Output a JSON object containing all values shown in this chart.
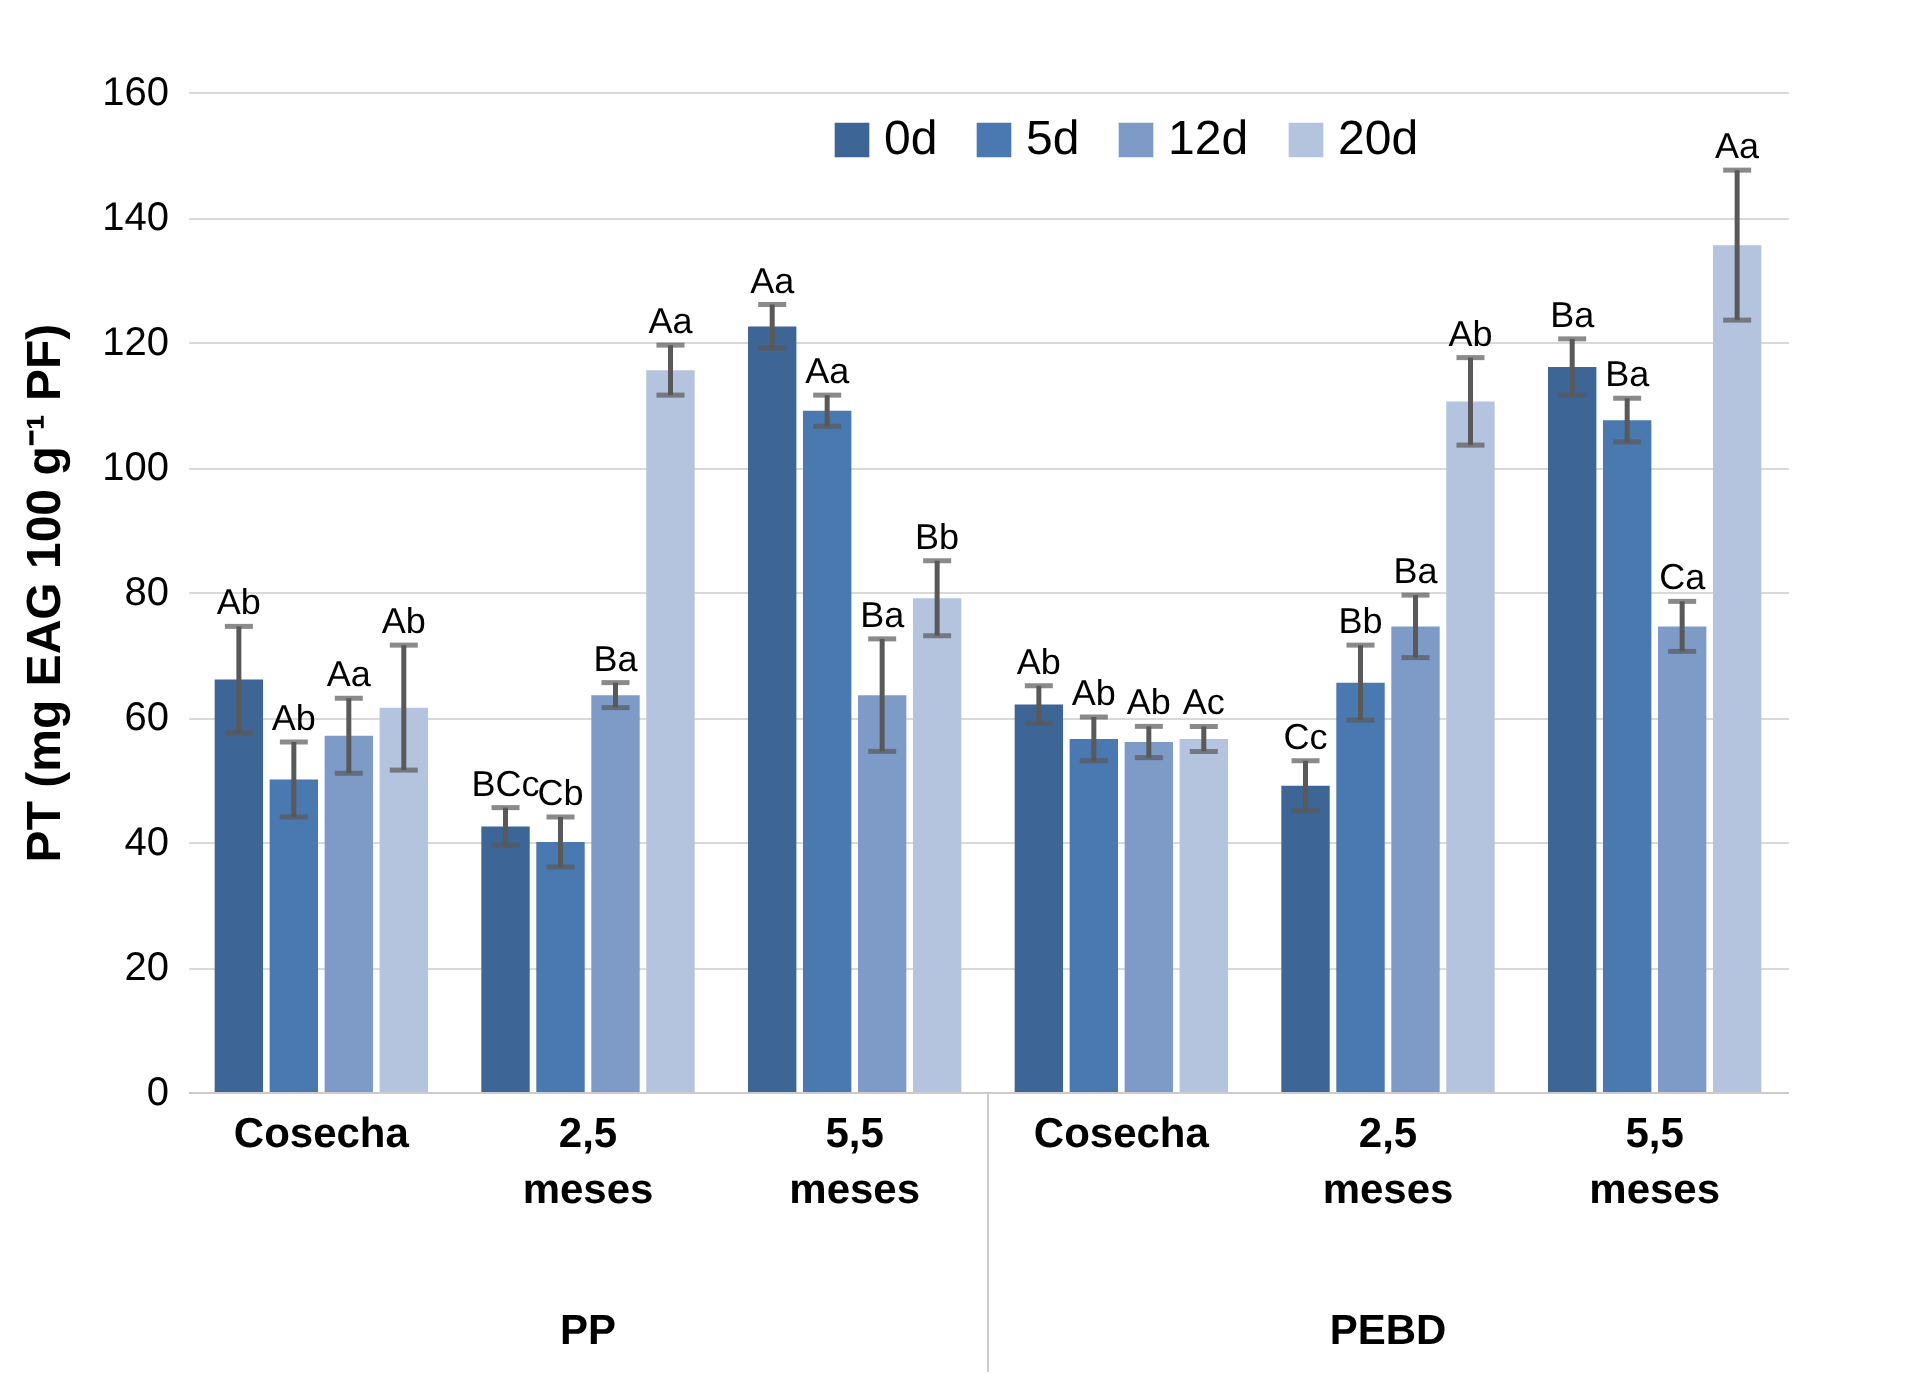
{
  "chart_data": {
    "type": "bar",
    "ylabel": "PT (mg EAG 100 g⁻¹ PF)",
    "categories": [
      "Cosecha",
      "2,5 meses",
      "5,5 meses",
      "Cosecha",
      "2,5 meses",
      "5,5 meses"
    ],
    "series": [
      {
        "name": "0d",
        "color": "#3d6596",
        "values": [
          66,
          42.5,
          122.5,
          62,
          49,
          116
        ],
        "errors": [
          8.5,
          3,
          3.5,
          3,
          4,
          4.5
        ],
        "value_labels": [
          "Ab",
          "BCc",
          "Aa",
          "Ab",
          "Cc",
          "Ba"
        ]
      },
      {
        "name": "5d",
        "color": "#4a78b0",
        "values": [
          50,
          40,
          109,
          56.5,
          65.5,
          107.5
        ],
        "errors": [
          6,
          4,
          2.5,
          3.5,
          6,
          3.5
        ],
        "value_labels": [
          "Ab",
          "Cb",
          "Aa",
          "Ab",
          "Bb",
          "Ba"
        ]
      },
      {
        "name": "12d",
        "color": "#7e9bc8",
        "values": [
          57,
          63.5,
          63.5,
          56,
          74.5,
          74.5
        ],
        "errors": [
          6,
          2,
          9,
          2.5,
          5,
          4
        ],
        "value_labels": [
          "Aa",
          "Ba",
          "Ba",
          "Ab",
          "Ba",
          "Ca"
        ]
      },
      {
        "name": "20d",
        "color": "#b4c3de",
        "values": [
          61.5,
          115.5,
          79,
          56.5,
          110.5,
          135.5
        ],
        "errors": [
          10,
          4,
          6,
          2,
          7,
          12
        ],
        "value_labels": [
          "Ab",
          "Aa",
          "Bb",
          "Ac",
          "Ab",
          "Aa"
        ]
      }
    ],
    "annotations": [
      "PP",
      "PEBD"
    ],
    "ylim": [
      0,
      160
    ],
    "yticks": [
      0,
      20,
      40,
      60,
      80,
      100,
      120,
      140,
      160
    ],
    "grid": "y",
    "legend": "top"
  }
}
